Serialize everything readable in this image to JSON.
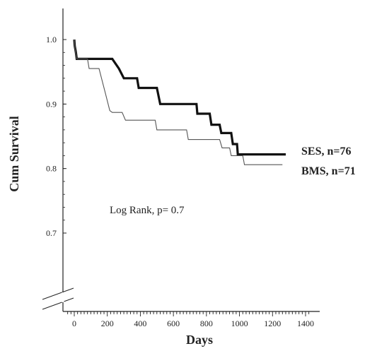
{
  "chart_data": {
    "type": "line",
    "ylabel": "Cum Survival",
    "xlabel": "Days",
    "annotation": "Log Rank, p= 0.7",
    "xlim": [
      -60,
      1430
    ],
    "ylim": [
      0.6,
      1.05
    ],
    "x_ticks": [
      0,
      200,
      400,
      600,
      800,
      1000,
      1200,
      1400
    ],
    "y_ticks": [
      0.7,
      0.8,
      0.9,
      1.0
    ],
    "x_tick_labels": [
      "0",
      "200",
      "400",
      "600",
      "800",
      "1000",
      "1200",
      "1400"
    ],
    "y_tick_labels": [
      "0.7",
      "0.8",
      "0.9",
      "1.0"
    ],
    "axis_break_y": true,
    "series": [
      {
        "name": "SES, n=76",
        "color": "#111111",
        "style": "thick",
        "points": [
          [
            0,
            1.0
          ],
          [
            3,
            0.99
          ],
          [
            10,
            0.98
          ],
          [
            15,
            0.97
          ],
          [
            230,
            0.97
          ],
          [
            270,
            0.955
          ],
          [
            300,
            0.94
          ],
          [
            380,
            0.94
          ],
          [
            390,
            0.925
          ],
          [
            500,
            0.925
          ],
          [
            520,
            0.9
          ],
          [
            740,
            0.9
          ],
          [
            745,
            0.885
          ],
          [
            820,
            0.885
          ],
          [
            830,
            0.868
          ],
          [
            880,
            0.868
          ],
          [
            890,
            0.855
          ],
          [
            950,
            0.855
          ],
          [
            960,
            0.838
          ],
          [
            985,
            0.838
          ],
          [
            990,
            0.822
          ],
          [
            1280,
            0.822
          ]
        ]
      },
      {
        "name": "BMS, n=71",
        "color": "#555555",
        "style": "thin",
        "points": [
          [
            0,
            1.0
          ],
          [
            5,
            0.985
          ],
          [
            15,
            0.97
          ],
          [
            80,
            0.97
          ],
          [
            90,
            0.955
          ],
          [
            150,
            0.955
          ],
          [
            165,
            0.94
          ],
          [
            190,
            0.915
          ],
          [
            215,
            0.89
          ],
          [
            230,
            0.887
          ],
          [
            290,
            0.887
          ],
          [
            310,
            0.875
          ],
          [
            490,
            0.875
          ],
          [
            500,
            0.86
          ],
          [
            680,
            0.86
          ],
          [
            690,
            0.845
          ],
          [
            880,
            0.845
          ],
          [
            895,
            0.832
          ],
          [
            940,
            0.832
          ],
          [
            950,
            0.82
          ],
          [
            1020,
            0.82
          ],
          [
            1030,
            0.806
          ],
          [
            1260,
            0.806
          ]
        ]
      }
    ]
  }
}
